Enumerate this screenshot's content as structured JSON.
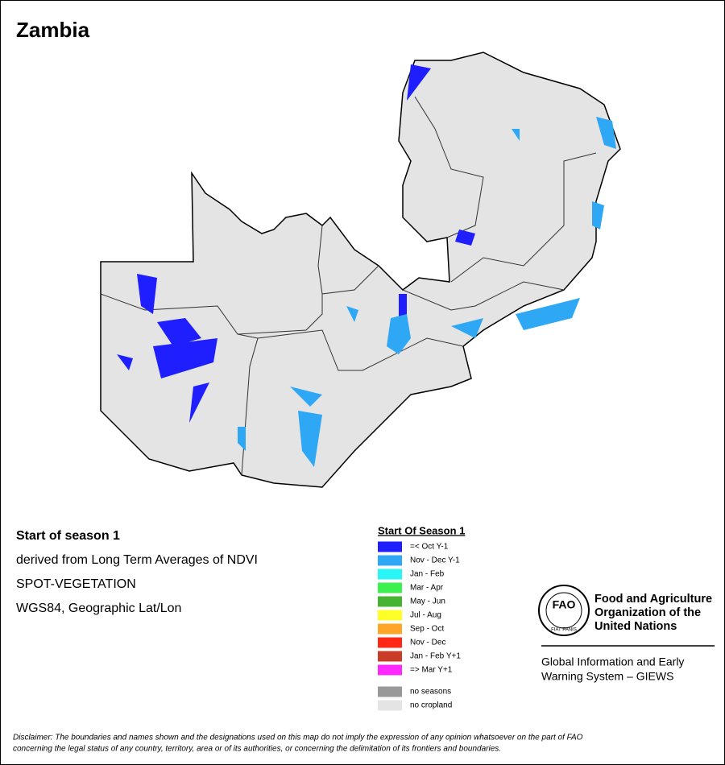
{
  "title": "Zambia",
  "info": {
    "heading": "Start of season 1",
    "lines": [
      "derived from Long Term Averages of NDVI",
      "SPOT-VEGETATION",
      "WGS84, Geographic Lat/Lon"
    ]
  },
  "legend": {
    "title": "Start Of Season 1",
    "items": [
      {
        "label": "=< Oct Y-1",
        "color": "#1e1eff"
      },
      {
        "label": "Nov - Dec Y-1",
        "color": "#2ea8f5"
      },
      {
        "label": "Jan - Feb",
        "color": "#28f5f5"
      },
      {
        "label": "Mar - Apr",
        "color": "#3cf050"
      },
      {
        "label": "May - Jun",
        "color": "#46b432"
      },
      {
        "label": "Jul - Aug",
        "color": "#ffff28"
      },
      {
        "label": "Sep - Oct",
        "color": "#ffa528"
      },
      {
        "label": "Nov - Dec",
        "color": "#ff2814"
      },
      {
        "label": "Jan - Feb Y+1",
        "color": "#c83c28"
      },
      {
        "label": "=> Mar Y+1",
        "color": "#ff28ff"
      }
    ],
    "extra": [
      {
        "label": "no seasons",
        "color": "#999999"
      },
      {
        "label": "no cropland",
        "color": "#e4e4e4"
      }
    ]
  },
  "logo": {
    "letters": "FAO",
    "motto": "FIAT PANIS",
    "org": [
      "Food and Agriculture",
      "Organization of the",
      "United Nations"
    ],
    "system": [
      "Global Information and Early",
      "Warning System – GIEWS"
    ]
  },
  "disclaimer": [
    "Disclaimer: The boundaries and names shown and the designations used on this map do not imply the expression of any opinion whatsoever on the part of FAO",
    "concerning the legal status of any country, territory, area or of its authorities, or concerning the delimitation of its frontiers and boundaries."
  ]
}
